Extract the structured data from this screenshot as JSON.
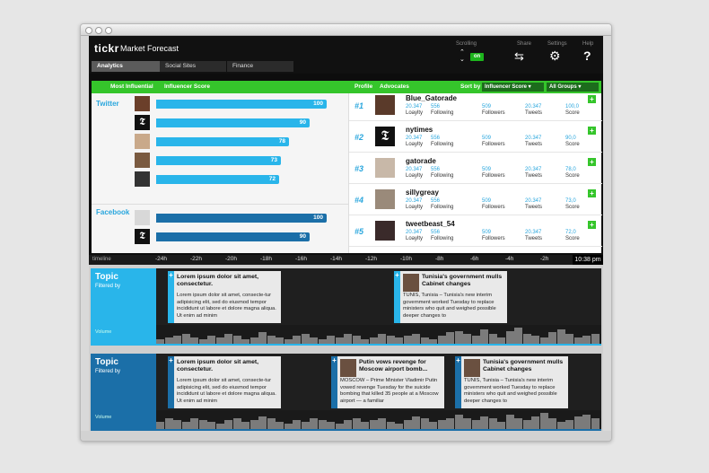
{
  "app": {
    "logo": "tickr",
    "title": "Market Forecast"
  },
  "controls": {
    "scrolling_label": "Scrolling",
    "scroll_arrows": "⌃\n⌄",
    "toggle_label": "on",
    "share_label": "Share",
    "share_icon": "⇆",
    "settings_label": "Settings",
    "settings_icon": "⚙",
    "help_label": "Help",
    "help_icon": "?"
  },
  "tabs": [
    "Analytics",
    "Social Sites",
    "Finance"
  ],
  "header": {
    "most_influential": "Most Influential",
    "influencer_score": "Influencer Score",
    "profile": "Profile",
    "advocates": "Advocates",
    "sort_by": "Sort by",
    "sort_select": "Influencer Score ▾",
    "group_select": "All Groups ▾"
  },
  "influencers": {
    "twitter_label": "Twitter",
    "facebook_label": "Facebook",
    "twitter": [
      {
        "score": 100
      },
      {
        "score": 90
      },
      {
        "score": 78
      },
      {
        "score": 73
      },
      {
        "score": 72
      }
    ],
    "facebook": [
      {
        "score": 100
      },
      {
        "score": 90
      }
    ]
  },
  "profiles": [
    {
      "rank": "#1",
      "name": "Blue_Gatorade",
      "loyalty": "20.347",
      "following": "556",
      "followers": "509",
      "tweets": "20.347",
      "score": "100,0"
    },
    {
      "rank": "#2",
      "name": "nytimes",
      "loyalty": "20.347",
      "following": "556",
      "followers": "509",
      "tweets": "20.347",
      "score": "90,0"
    },
    {
      "rank": "#3",
      "name": "gatorade",
      "loyalty": "20.347",
      "following": "556",
      "followers": "509",
      "tweets": "20.347",
      "score": "78,0"
    },
    {
      "rank": "#4",
      "name": "sillygreay",
      "loyalty": "20.347",
      "following": "556",
      "followers": "509",
      "tweets": "20.347",
      "score": "73,0"
    },
    {
      "rank": "#5",
      "name": "tweetbeast_54",
      "loyalty": "20.347",
      "following": "556",
      "followers": "509",
      "tweets": "20.347",
      "score": "72,0"
    }
  ],
  "profile_labels": {
    "loyalty": "Loaylty",
    "following": "Following",
    "followers": "Followers",
    "tweets": "Tweets",
    "score": "Score"
  },
  "timeline": {
    "label": "timeline",
    "ticks": [
      "-24h",
      "-22h",
      "-20h",
      "-18h",
      "-16h",
      "-14h",
      "-12h",
      "-10h",
      "-8h",
      "-6h",
      "-4h",
      "-2h"
    ],
    "now": "10:38 pm"
  },
  "streams": [
    {
      "title": "Topic",
      "subtitle": "Filtered by",
      "volume_label": "Volume",
      "accent": "#29b5ea",
      "cards": [
        {
          "headline": "Lorem ipsum dolor sit amet, consectetur.",
          "body": "Lorem ipsum dolor sit amet, consecte-tur adipisicing elit, sed do eiusmod tempor incididunt ut labore et dolore magna aliqua. Ut enim ad minim",
          "plus": "+"
        },
        {
          "headline": "Tunisia's government mulls Cabinet changes",
          "body": "TUNIS, Tunisia – Tunisia's new interim government worked Tuesday to replace ministers who quit and weighed possible deeper changes to",
          "plus": "+"
        }
      ],
      "volume": [
        3,
        4,
        5,
        6,
        4,
        3,
        5,
        4,
        6,
        5,
        3,
        4,
        7,
        5,
        4,
        3,
        5,
        6,
        4,
        3,
        5,
        4,
        6,
        5,
        3,
        4,
        6,
        5,
        4,
        5,
        6,
        4,
        3,
        5,
        7,
        8,
        6,
        5,
        9,
        6,
        4,
        8,
        10,
        6,
        5,
        4,
        7,
        9,
        6,
        4,
        5,
        6
      ]
    },
    {
      "title": "Topic",
      "subtitle": "Filtered by",
      "volume_label": "Volume",
      "accent": "#1b6fa8",
      "cards": [
        {
          "headline": "Lorem ipsum dolor sit amet, consectetur.",
          "body": "Lorem ipsum dolor sit amet, consecte-tur adipisicing elit, sed do eiusmod tempor incididunt ut labore et dolore magna aliqua. Ut enim ad minim",
          "plus": "+"
        },
        {
          "headline": "Putin vows revenge for Moscow airport bomb...",
          "body": "MOSCOW – Prime Minister Vladimir Putin vowed revenge Tuesday for the suicide bombing that killed 35 people at a Moscow airport — a familiar",
          "plus": "+"
        },
        {
          "headline": "Tunisia's government mulls Cabinet changes",
          "body": "TUNIS, Tunisia – Tunisia's new interim government worked Tuesday to replace ministers who quit and weighed possible deeper changes to",
          "plus": "+"
        }
      ],
      "volume": [
        4,
        6,
        5,
        4,
        6,
        5,
        4,
        3,
        5,
        6,
        4,
        5,
        7,
        6,
        4,
        3,
        5,
        4,
        6,
        5,
        4,
        3,
        5,
        6,
        4,
        5,
        6,
        4,
        3,
        5,
        7,
        6,
        4,
        5,
        6,
        8,
        6,
        5,
        7,
        6,
        4,
        8,
        6,
        5,
        7,
        9,
        6,
        4,
        5,
        7,
        8,
        6
      ]
    }
  ],
  "colors": {
    "accent_green": "#35c52b",
    "twitter_blue": "#29b5ea",
    "facebook_blue": "#1b6fa8"
  }
}
